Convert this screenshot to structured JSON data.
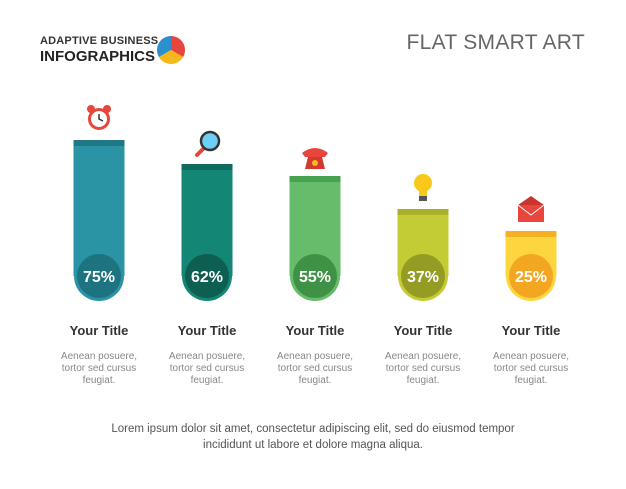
{
  "header": {
    "brand_line1": "ADAPTIVE BUSINESS",
    "brand_line2": "INFOGRAPHICS",
    "title": "FLAT SMART ART",
    "pie_colors": [
      "#E8453C",
      "#F6B81A",
      "#2C8FD0"
    ]
  },
  "chart_data": {
    "type": "bar",
    "categories": [
      "Your Title",
      "Your Title",
      "Your Title",
      "Your Title",
      "Your Title"
    ],
    "values": [
      75,
      62,
      55,
      37,
      25
    ],
    "value_labels": [
      "75%",
      "62%",
      "55%",
      "37%",
      "25%"
    ],
    "title": "",
    "xlabel": "",
    "ylabel": "",
    "ylim": [
      0,
      100
    ],
    "grid": false,
    "descriptions": [
      [
        "Aenean posuere,",
        "tortor sed cursus",
        "feugiat."
      ],
      [
        "Aenean posuere,",
        "tortor sed cursus",
        "feugiat."
      ],
      [
        "Aenean posuere,",
        "tortor sed cursus",
        "feugiat."
      ],
      [
        "Aenean posuere,",
        "tortor sed cursus",
        "feugiat."
      ],
      [
        "Aenean posuere,",
        "tortor sed cursus",
        "feugiat."
      ]
    ],
    "icons": [
      "alarm-clock-icon",
      "magnifier-icon",
      "telephone-icon",
      "light-bulb-icon",
      "envelope-icon"
    ],
    "colors": [
      {
        "bar": "#2A94A4",
        "cap": "#1F7784",
        "circle": "#1E7380"
      },
      {
        "bar": "#148675",
        "cap": "#0F6B5D",
        "circle": "#0D5F52"
      },
      {
        "bar": "#66BC6A",
        "cap": "#47A14E",
        "circle": "#3F9245"
      },
      {
        "bar": "#C3CB35",
        "cap": "#A9B12A",
        "circle": "#959C24"
      },
      {
        "bar": "#FCD53F",
        "cap": "#F5B021",
        "circle": "#F3A622"
      }
    ]
  },
  "footer": {
    "line1": "Lorem ipsum dolor sit amet, consectetur adipiscing elit, sed do eiusmod tempor",
    "line2": "incididunt ut labore et dolore magna aliqua."
  }
}
